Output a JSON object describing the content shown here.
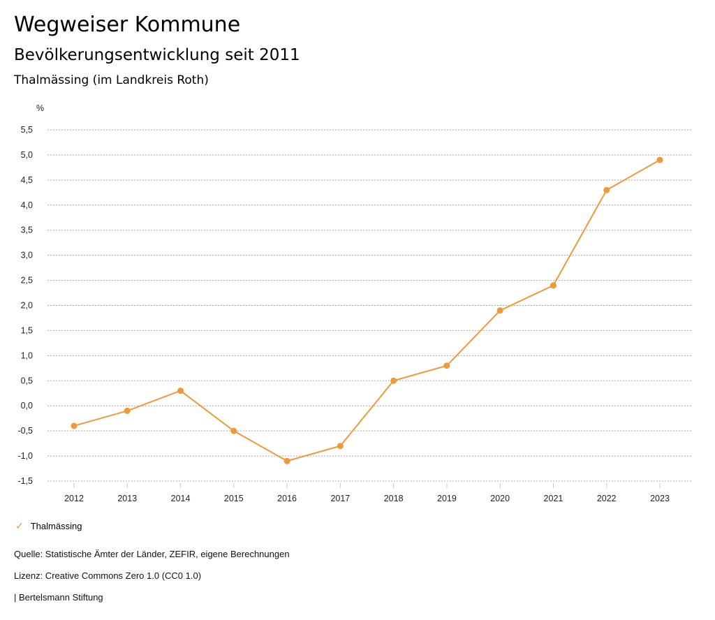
{
  "header": {
    "title": "Wegweiser Kommune",
    "subtitle": "Bevölkerungsentwicklung seit 2011",
    "region": "Thalmässing (im Landkreis Roth)"
  },
  "chart_data": {
    "type": "line",
    "ylabel": "%",
    "ylim": [
      -1.5,
      5.5
    ],
    "ytick_step": 0.5,
    "yticks": [
      "5,5",
      "5,0",
      "4,5",
      "4,0",
      "3,5",
      "3,0",
      "2,5",
      "2,0",
      "1,5",
      "1,0",
      "0,5",
      "0,0",
      "-0,5",
      "-1,0",
      "-1,5"
    ],
    "categories": [
      "2012",
      "2013",
      "2014",
      "2015",
      "2016",
      "2017",
      "2018",
      "2019",
      "2020",
      "2021",
      "2022",
      "2023"
    ],
    "series": [
      {
        "name": "Thalmässing",
        "color": "#ef9a3a",
        "values": [
          -0.4,
          -0.1,
          0.3,
          -0.5,
          -1.1,
          -0.8,
          0.5,
          0.8,
          1.9,
          2.4,
          4.3,
          4.9
        ]
      }
    ],
    "grid": true,
    "legend": "bottom-left"
  },
  "legend": {
    "icon": "check-icon",
    "label": "Thalmässing"
  },
  "footer": {
    "source": "Quelle: Statistische Ämter der Länder, ZEFIR, eigene Berechnungen",
    "license": "Lizenz: Creative Commons Zero 1.0 (CC0 1.0)",
    "publisher": "| Bertelsmann Stiftung"
  }
}
